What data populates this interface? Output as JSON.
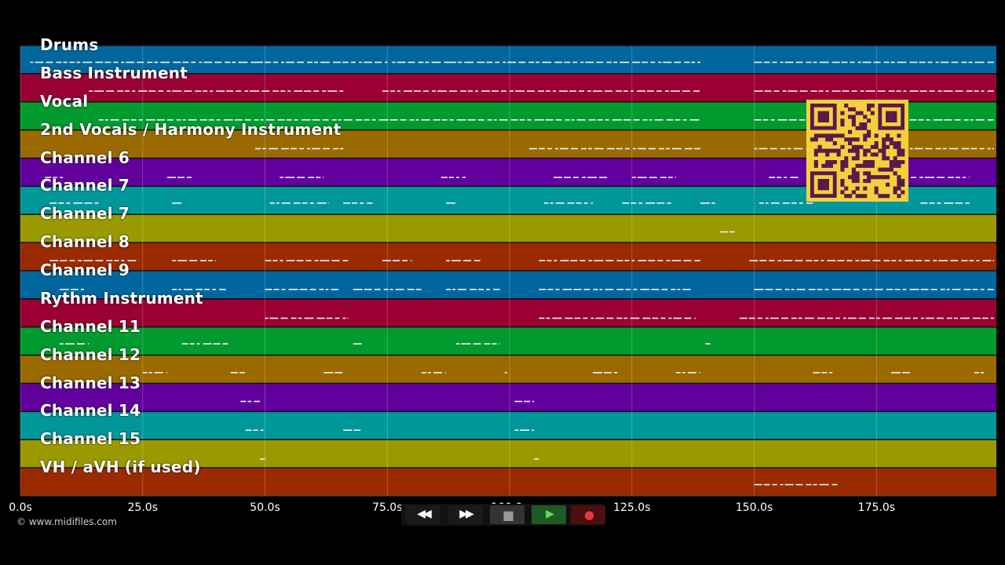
{
  "tracks": [
    {
      "label": "Drums",
      "color": "#00669e"
    },
    {
      "label": "Bass Instrument",
      "color": "#9b0033"
    },
    {
      "label": "Vocal",
      "color": "#009a2e"
    },
    {
      "label": "2nd Vocals / Harmony Instrument",
      "color": "#9a6a00"
    },
    {
      "label": "Channel 6",
      "color": "#62009e"
    },
    {
      "label": "Channel 7",
      "color": "#00979a"
    },
    {
      "label": "Channel 7",
      "color": "#9a9a00"
    },
    {
      "label": "Channel 8",
      "color": "#9a2a00"
    },
    {
      "label": "Channel 9",
      "color": "#00669e"
    },
    {
      "label": "Rythm Instrument",
      "color": "#9b0033"
    },
    {
      "label": "Channel 11",
      "color": "#009a2e"
    },
    {
      "label": "Channel 12",
      "color": "#9a6a00"
    },
    {
      "label": "Channel 13",
      "color": "#62009e"
    },
    {
      "label": "Channel 14",
      "color": "#00979a"
    },
    {
      "label": "Channel 15",
      "color": "#9a9a00"
    },
    {
      "label": "VH / aVH (if used)",
      "color": "#9a2a00"
    }
  ],
  "time_axis": {
    "ticks": [
      {
        "seconds": 0,
        "label": "0.0s"
      },
      {
        "seconds": 25,
        "label": "25.0s"
      },
      {
        "seconds": 50,
        "label": "50.0s"
      },
      {
        "seconds": 75,
        "label": "75.0s"
      },
      {
        "seconds": 100,
        "label": "100.0s"
      },
      {
        "seconds": 125,
        "label": "125.0s"
      },
      {
        "seconds": 150,
        "label": "150.0s"
      },
      {
        "seconds": 175,
        "label": "175.0s"
      }
    ],
    "max_seconds": 199.5
  },
  "notes": [
    {
      "track": 0,
      "segments": [
        [
          2,
          10
        ],
        [
          10,
          48
        ],
        [
          48,
          75
        ],
        [
          76,
          88
        ],
        [
          88,
          139
        ],
        [
          150,
          199
        ]
      ]
    },
    {
      "track": 1,
      "segments": [
        [
          14,
          66
        ],
        [
          74,
          139
        ],
        [
          150,
          199
        ]
      ]
    },
    {
      "track": 2,
      "segments": [
        [
          16,
          139
        ],
        [
          150,
          199
        ]
      ]
    },
    {
      "track": 3,
      "segments": [
        [
          48,
          66
        ],
        [
          104,
          139
        ],
        [
          150,
          199
        ]
      ]
    },
    {
      "track": 4,
      "segments": [
        [
          5,
          9
        ],
        [
          30,
          35
        ],
        [
          53,
          62
        ],
        [
          86,
          91
        ],
        [
          109,
          120
        ],
        [
          125,
          134
        ],
        [
          153,
          159
        ],
        [
          178,
          194
        ]
      ]
    },
    {
      "track": 5,
      "segments": [
        [
          6,
          16
        ],
        [
          31,
          33
        ],
        [
          51,
          63
        ],
        [
          66,
          72
        ],
        [
          87,
          89
        ],
        [
          107,
          117
        ],
        [
          123,
          133
        ],
        [
          139,
          142
        ],
        [
          151,
          162
        ],
        [
          184,
          194
        ]
      ]
    },
    {
      "track": 6,
      "segments": [
        [
          143,
          146
        ]
      ]
    },
    {
      "track": 7,
      "segments": [
        [
          6,
          24
        ],
        [
          31,
          40
        ],
        [
          50,
          67
        ],
        [
          74,
          80
        ],
        [
          87,
          94
        ],
        [
          106,
          139
        ],
        [
          149,
          199
        ]
      ]
    },
    {
      "track": 8,
      "segments": [
        [
          8,
          13
        ],
        [
          31,
          42
        ],
        [
          50,
          65
        ],
        [
          68,
          82
        ],
        [
          87,
          98
        ],
        [
          106,
          137
        ],
        [
          150,
          199
        ]
      ]
    },
    {
      "track": 9,
      "segments": [
        [
          50,
          67
        ],
        [
          106,
          138
        ],
        [
          147,
          199
        ]
      ]
    },
    {
      "track": 10,
      "segments": [
        [
          8,
          14
        ],
        [
          33,
          43
        ],
        [
          68,
          70
        ],
        [
          89,
          98
        ],
        [
          140,
          141
        ]
      ]
    },
    {
      "track": 11,
      "segments": [
        [
          25,
          30
        ],
        [
          43,
          46
        ],
        [
          62,
          66
        ],
        [
          82,
          87
        ],
        [
          99,
          99
        ],
        [
          117,
          122
        ],
        [
          134,
          139
        ],
        [
          162,
          166
        ],
        [
          178,
          182
        ],
        [
          195,
          197
        ]
      ]
    },
    {
      "track": 12,
      "segments": [
        [
          45,
          49
        ],
        [
          101,
          105
        ]
      ]
    },
    {
      "track": 13,
      "segments": [
        [
          46,
          50
        ],
        [
          66,
          70
        ],
        [
          101,
          105
        ]
      ]
    },
    {
      "track": 14,
      "segments": [
        [
          49,
          50
        ],
        [
          105,
          106
        ]
      ]
    },
    {
      "track": 15,
      "segments": [
        [
          150,
          167
        ]
      ]
    }
  ],
  "qr_code": {
    "label": "qr-code",
    "color": "#f4d03f",
    "ink": "#5a1a4a"
  },
  "copyright": "© www.midifiles.com",
  "transport": [
    {
      "name": "rewind-button",
      "icon": "rewind-icon",
      "glyph": "◀◀"
    },
    {
      "name": "fast-forward-button",
      "icon": "fast-forward-icon",
      "glyph": "▶▶"
    },
    {
      "name": "stop-button",
      "icon": "stop-icon",
      "glyph": "■"
    },
    {
      "name": "play-button",
      "icon": "play-icon",
      "glyph": "▶"
    },
    {
      "name": "record-button",
      "icon": "record-icon",
      "glyph": "●"
    }
  ]
}
